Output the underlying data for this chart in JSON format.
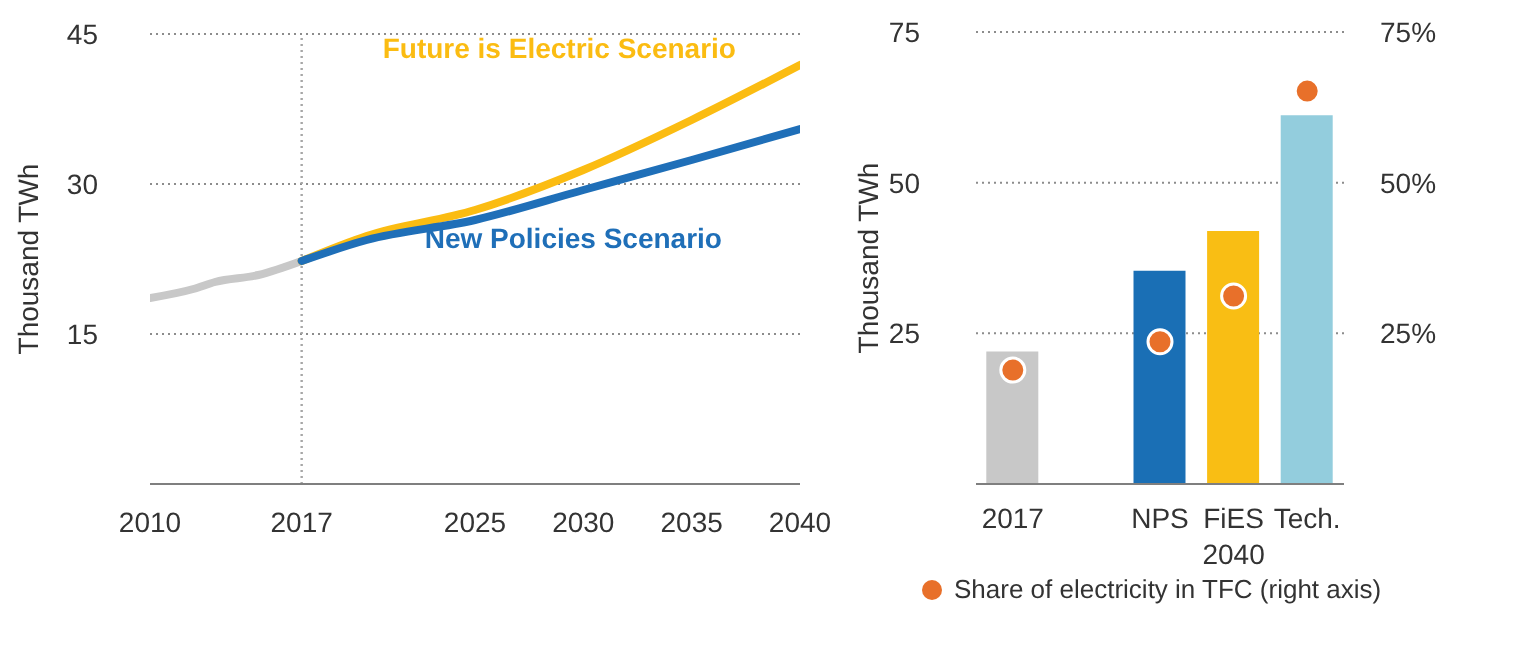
{
  "chart_data": [
    {
      "type": "line",
      "ylabel": "Thousand TWh",
      "xlim": [
        2010,
        2040
      ],
      "xticks": [
        2010,
        2017,
        2025,
        2030,
        2035,
        2040
      ],
      "ylim": [
        0,
        45
      ],
      "yticks": [
        15,
        30,
        45
      ],
      "grid": "y",
      "marker": "none",
      "ref_lines": [
        {
          "axis": "x",
          "value": 2017,
          "color": "#a6a6a6",
          "line_style": "dotted"
        }
      ],
      "series": [
        {
          "color": "#c8c8c8",
          "x": [
            2010,
            2012,
            2013,
            2015,
            2017
          ],
          "values": [
            18.6,
            19.5,
            20.2,
            20.9,
            22.3
          ]
        },
        {
          "name": "Future is Electric Scenario",
          "color": "#fbbc12",
          "x": [
            2017,
            2020,
            2025,
            2030,
            2035,
            2040
          ],
          "values": [
            22.3,
            24.8,
            27.4,
            31.4,
            36.4,
            41.9
          ]
        },
        {
          "name": "New Policies Scenario",
          "color": "#1f6fb8",
          "x": [
            2017,
            2020,
            2025,
            2030,
            2035,
            2040
          ],
          "values": [
            22.3,
            24.4,
            26.4,
            29.4,
            32.4,
            35.5
          ]
        }
      ]
    },
    {
      "type": "bar",
      "ylabel": "Thousand TWh",
      "categories": [
        "2017",
        null,
        "NPS",
        "FiES",
        "Tech."
      ],
      "ylim": [
        0,
        75
      ],
      "yticks": [
        25,
        50,
        75
      ],
      "y2lim": [
        0,
        75
      ],
      "y2ticks": [
        {
          "value": 25,
          "label": "25%"
        },
        {
          "value": 50,
          "label": "50%"
        },
        {
          "value": 75,
          "label": "75%"
        }
      ],
      "grid": "y",
      "legend": "bottom",
      "marker": "circle",
      "annotations": [
        "2040"
      ],
      "series": [
        {
          "type": "bar",
          "colors": [
            "#c8c8c8",
            null,
            "#1a6fb5",
            "#f9be14",
            "#93cddd"
          ],
          "values": [
            22,
            null,
            35.4,
            42,
            61.2
          ]
        },
        {
          "type": "scatter",
          "name": "Share of electricity in TFC (right axis)",
          "color": "#e8702a",
          "axis": "y2",
          "values": [
            18.9,
            null,
            23.6,
            31.2,
            65.2
          ]
        }
      ]
    }
  ]
}
